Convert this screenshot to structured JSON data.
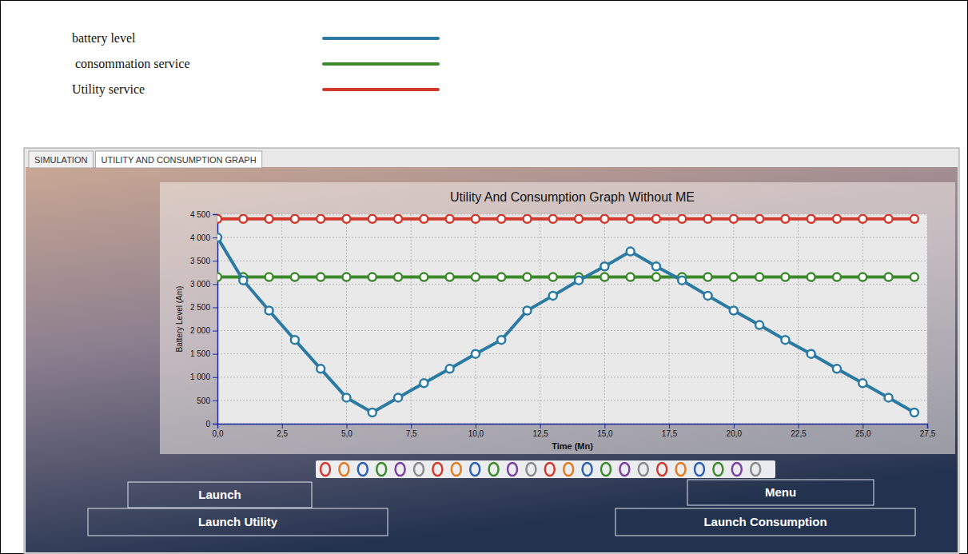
{
  "chart_data": {
    "type": "line",
    "title": "Utility And Consumption Graph Without ME",
    "x_label": "Time (Mn)",
    "y_label": "Battery Level (Am)",
    "x": [
      0,
      1,
      2,
      3,
      4,
      5,
      6,
      7,
      8,
      9,
      10,
      11,
      12,
      13,
      14,
      15,
      16,
      17,
      18,
      19,
      20,
      21,
      22,
      23,
      24,
      25,
      26,
      27
    ],
    "series": [
      {
        "name": "battery level",
        "color": "#2b7aa3",
        "marker": "circle",
        "values": [
          4000,
          3080,
          2430,
          1800,
          1180,
          560,
          240,
          560,
          870,
          1180,
          1500,
          1800,
          2430,
          2750,
          3080,
          3380,
          3700,
          3380,
          3080,
          2750,
          2430,
          2120,
          1800,
          1500,
          1180,
          870,
          560,
          240
        ]
      },
      {
        "name": "consommation service",
        "color": "#3c8a2c",
        "marker": "circle",
        "values": [
          3150,
          3150,
          3150,
          3150,
          3150,
          3150,
          3150,
          3150,
          3150,
          3150,
          3150,
          3150,
          3150,
          3150,
          3150,
          3150,
          3150,
          3150,
          3150,
          3150,
          3150,
          3150,
          3150,
          3150,
          3150,
          3150,
          3150,
          3150
        ]
      },
      {
        "name": "Utility service",
        "color": "#d0392b",
        "marker": "circle",
        "values": [
          4400,
          4400,
          4400,
          4400,
          4400,
          4400,
          4400,
          4400,
          4400,
          4400,
          4400,
          4400,
          4400,
          4400,
          4400,
          4400,
          4400,
          4400,
          4400,
          4400,
          4400,
          4400,
          4400,
          4400,
          4400,
          4400,
          4400,
          4400
        ]
      }
    ],
    "xlim": [
      0,
      27.5
    ],
    "xticks": [
      {
        "value": 0,
        "label": "0,0"
      },
      {
        "value": 2.5,
        "label": "2,5"
      },
      {
        "value": 5,
        "label": "5,0"
      },
      {
        "value": 7.5,
        "label": "7,5"
      },
      {
        "value": 10,
        "label": "10,0"
      },
      {
        "value": 12.5,
        "label": "12,5"
      },
      {
        "value": 15,
        "label": "15,0"
      },
      {
        "value": 17.5,
        "label": "17,5"
      },
      {
        "value": 20,
        "label": "20,0"
      },
      {
        "value": 22.5,
        "label": "22,5"
      },
      {
        "value": 25,
        "label": "25,0"
      },
      {
        "value": 27.5,
        "label": "27,5"
      }
    ],
    "ylim": [
      0,
      4500
    ],
    "yticks": [
      0,
      500,
      {
        "value": 1000,
        "label": "1 000"
      },
      {
        "value": 1500,
        "label": "1 500"
      },
      {
        "value": 2000,
        "label": "2 000"
      },
      {
        "value": 2500,
        "label": "2 500"
      },
      {
        "value": 3000,
        "label": "3 000"
      },
      {
        "value": 3500,
        "label": "3 500"
      },
      {
        "value": 4000,
        "label": "4 000"
      },
      {
        "value": 4500,
        "label": "4 500"
      }
    ],
    "grid": true,
    "legend": "top-left"
  },
  "ui": {
    "tabs": [
      "SIMULATION",
      "UTILITY AND CONSUMPTION GRAPH"
    ],
    "buttons": [
      "Launch",
      "Launch Utility",
      "Menu",
      "Launch Consumption"
    ]
  }
}
